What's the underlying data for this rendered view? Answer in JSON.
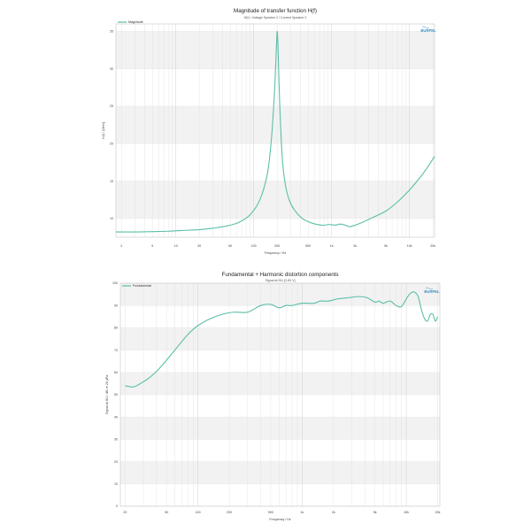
{
  "chart_data": [
    {
      "type": "line",
      "title": "Magnitude of transfer function H(f)",
      "subtitle": "H(f)= Voltage Speaker 2 / Current Speaker 2",
      "xlabel": "Frequency / Hz",
      "ylabel": "H(f) / [Ohm]",
      "x_scale": "log",
      "xlim": [
        1.7,
        21000
      ],
      "ylim": [
        7.5,
        36
      ],
      "x_ticks": [
        {
          "v": 2,
          "label": "2"
        },
        {
          "v": 5,
          "label": "5"
        },
        {
          "v": 10,
          "label": "10"
        },
        {
          "v": 20,
          "label": "20"
        },
        {
          "v": 50,
          "label": "50"
        },
        {
          "v": 100,
          "label": "100"
        },
        {
          "v": 200,
          "label": "200"
        },
        {
          "v": 500,
          "label": "500"
        },
        {
          "v": 1000,
          "label": "1k"
        },
        {
          "v": 2000,
          "label": "2k"
        },
        {
          "v": 5000,
          "label": "5k"
        },
        {
          "v": 10000,
          "label": "10k"
        },
        {
          "v": 20000,
          "label": "20k"
        }
      ],
      "y_ticks": [
        {
          "v": 10,
          "label": "10"
        },
        {
          "v": 15,
          "label": "15"
        },
        {
          "v": 20,
          "label": "20"
        },
        {
          "v": 25,
          "label": "25"
        },
        {
          "v": 30,
          "label": "30"
        },
        {
          "v": 35,
          "label": "35"
        }
      ],
      "grid": true,
      "legend": "top-left",
      "logo": "BURPEL",
      "series": [
        {
          "name": "Magnitude",
          "color": "#5bbfa8",
          "x": [
            1.7,
            3,
            5,
            8,
            12,
            20,
            30,
            45,
            65,
            90,
            120,
            150,
            170,
            185,
            195,
            200,
            205,
            210,
            220,
            235,
            255,
            285,
            330,
            420,
            550,
            750,
            950,
            1100,
            1300,
            1500,
            1700,
            2000,
            2500,
            3500,
            5000,
            7000,
            10000,
            14000,
            18000,
            21000
          ],
          "y": [
            8.2,
            8.2,
            8.25,
            8.3,
            8.4,
            8.5,
            8.7,
            9.0,
            9.5,
            10.5,
            12.5,
            16,
            21,
            27,
            32.5,
            35,
            33,
            29,
            23,
            17.5,
            14.5,
            12.5,
            11.2,
            10.0,
            9.4,
            9.1,
            9.2,
            9.1,
            9.25,
            9.1,
            8.9,
            9.1,
            9.5,
            10.2,
            11.0,
            12.2,
            13.8,
            15.6,
            17.2,
            18.3
          ]
        }
      ]
    },
    {
      "type": "line",
      "title": "Fundamental + Harmonic distortion components",
      "subtitle": "Signal at IN1 [2.83 V]",
      "xlabel": "Frequency / Hz",
      "ylabel": "Signal at IN1 / dB re 20 µPa",
      "x_scale": "log",
      "xlim": [
        18,
        21000
      ],
      "ylim": [
        0,
        100
      ],
      "x_ticks": [
        {
          "v": 20,
          "label": "20"
        },
        {
          "v": 50,
          "label": "50"
        },
        {
          "v": 100,
          "label": "100"
        },
        {
          "v": 200,
          "label": "200"
        },
        {
          "v": 500,
          "label": "500"
        },
        {
          "v": 1000,
          "label": "1k"
        },
        {
          "v": 2000,
          "label": "2k"
        },
        {
          "v": 5000,
          "label": "5k"
        },
        {
          "v": 10000,
          "label": "10k"
        },
        {
          "v": 20000,
          "label": "20k"
        }
      ],
      "y_ticks": [
        {
          "v": 0,
          "label": "0"
        },
        {
          "v": 10,
          "label": "10"
        },
        {
          "v": 20,
          "label": "20"
        },
        {
          "v": 30,
          "label": "30"
        },
        {
          "v": 40,
          "label": "40"
        },
        {
          "v": 50,
          "label": "50"
        },
        {
          "v": 60,
          "label": "60"
        },
        {
          "v": 70,
          "label": "70"
        },
        {
          "v": 80,
          "label": "80"
        },
        {
          "v": 90,
          "label": "90"
        },
        {
          "v": 100,
          "label": "100"
        }
      ],
      "grid": true,
      "legend": "top-left",
      "logo": "BURPEL",
      "series": [
        {
          "name": "Fundamental",
          "color": "#5bbfa8",
          "x": [
            20,
            24,
            28,
            35,
            45,
            60,
            80,
            100,
            130,
            170,
            220,
            300,
            400,
            500,
            600,
            700,
            800,
            1000,
            1300,
            1500,
            1800,
            2200,
            2800,
            3500,
            4200,
            5000,
            5500,
            6000,
            7000,
            8000,
            9000,
            10000,
            11000,
            12000,
            13000,
            14000,
            15000,
            16000,
            17000,
            18000,
            19000,
            20000
          ],
          "y": [
            54,
            53.5,
            55,
            58,
            63,
            70,
            77,
            81,
            84,
            86,
            87,
            87,
            90,
            90.5,
            89,
            90,
            90,
            91,
            91,
            92,
            92,
            93,
            93.5,
            94,
            93.5,
            91.5,
            92,
            91,
            92,
            90,
            89.5,
            93,
            95.5,
            96,
            94,
            88,
            84,
            83,
            86,
            86,
            83,
            85
          ]
        }
      ]
    }
  ]
}
